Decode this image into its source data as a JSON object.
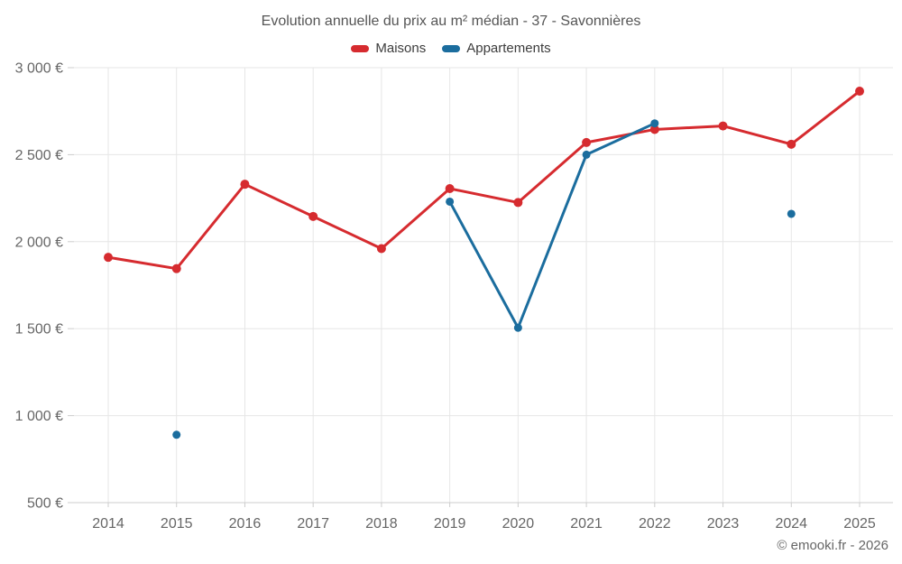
{
  "chart": {
    "title": "Evolution annuelle du prix au m² médian - 37 - Savonnières",
    "legend": [
      "Maisons",
      "Appartements"
    ],
    "footer": "© emooki.fr - 2026"
  },
  "chart_data": {
    "type": "line",
    "title": "Evolution annuelle du prix au m² médian - 37 - Savonnières",
    "xlabel": "",
    "ylabel": "",
    "categories": [
      "2014",
      "2015",
      "2016",
      "2017",
      "2018",
      "2019",
      "2020",
      "2021",
      "2022",
      "2023",
      "2024",
      "2025"
    ],
    "series": [
      {
        "name": "Maisons",
        "color": "#d62b2f",
        "marker_radius": 5,
        "line_width": 3,
        "values": [
          1910,
          1845,
          2330,
          2145,
          1960,
          2305,
          2225,
          2570,
          2645,
          2665,
          2560,
          2865
        ]
      },
      {
        "name": "Appartements",
        "color": "#1b6d9e",
        "marker_radius": 4.5,
        "line_width": 3,
        "values": [
          null,
          890,
          null,
          null,
          null,
          2230,
          1505,
          2500,
          2680,
          null,
          2160,
          null
        ]
      }
    ],
    "ylim": [
      500,
      3000
    ],
    "y_ticks": [
      {
        "value": 500,
        "label": "500 €"
      },
      {
        "value": 1000,
        "label": "1 000 €"
      },
      {
        "value": 1500,
        "label": "1 500 €"
      },
      {
        "value": 2000,
        "label": "2 000 €"
      },
      {
        "value": 2500,
        "label": "2 500 €"
      },
      {
        "value": 3000,
        "label": "3 000 €"
      }
    ],
    "grid": true,
    "legend_position": "top",
    "colors": {
      "grid": "#e6e6e6",
      "axis": "#cccccc",
      "label": "#666666"
    }
  }
}
